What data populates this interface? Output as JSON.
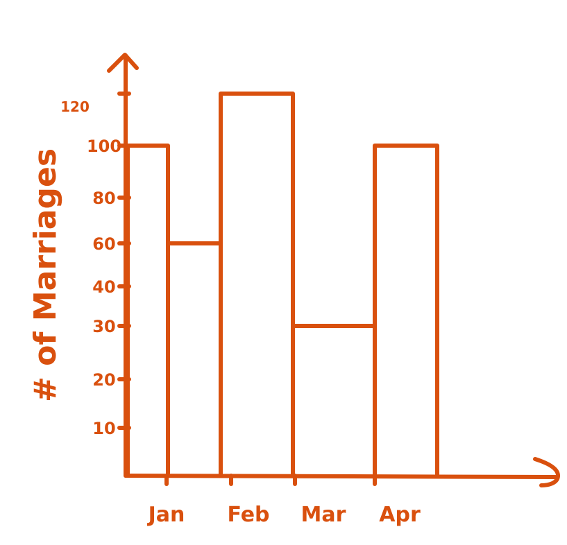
{
  "chart_data": {
    "type": "bar",
    "ylabel": "# of Marriages",
    "xlabel": "",
    "title": "",
    "y_ticks": [
      {
        "value": 10,
        "label": "10"
      },
      {
        "value": 20,
        "label": "20"
      },
      {
        "value": 30,
        "label": "30"
      },
      {
        "value": 40,
        "label": "40"
      },
      {
        "value": 60,
        "label": "60"
      },
      {
        "value": 80,
        "label": "80"
      },
      {
        "value": 100,
        "label": "100"
      },
      {
        "value": 120,
        "label": "120"
      }
    ],
    "bars": [
      {
        "category": "Jan",
        "value": 100
      },
      {
        "category": "Jan",
        "value": 60
      },
      {
        "category": "Feb",
        "value": 120
      },
      {
        "category": "Mar",
        "value": 30
      },
      {
        "category": "Apr",
        "value": 100
      }
    ],
    "x_ticks": [
      "Jan",
      "Feb",
      "Mar",
      "Apr"
    ],
    "style": {
      "color": "#d9500e",
      "hand_drawn": true
    },
    "grid": false,
    "legend": "none"
  }
}
